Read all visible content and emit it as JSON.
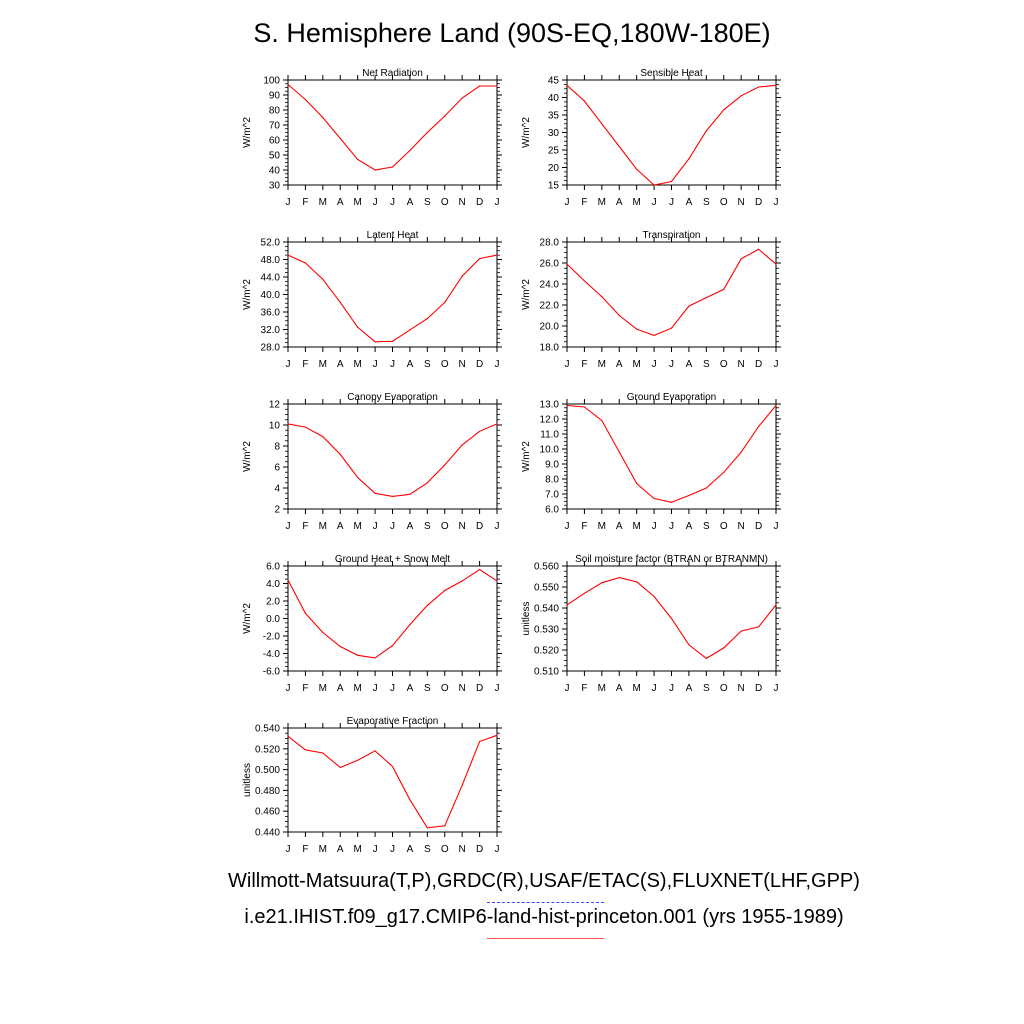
{
  "title": "S. Hemisphere Land (90S-EQ,180W-180E)",
  "footer": {
    "observations": "Willmott-Matsuura(T,P),GRDC(R),USAF/ETAC(S),FLUXNET(LHF,GPP)",
    "case": "i.e21.IHIST.f09_g17.CMIP6-land-hist-princeton.001 (yrs 1955-1989)"
  },
  "colors": {
    "case_line": "#ff0000",
    "obs_line": "#4040ff",
    "axis": "#000000"
  },
  "months": [
    "J",
    "F",
    "M",
    "A",
    "M",
    "J",
    "J",
    "A",
    "S",
    "O",
    "N",
    "D",
    "J"
  ],
  "chart_data": [
    {
      "type": "line",
      "title": "Net Radiation",
      "ylabel": "W/m^2",
      "ylim": [
        30,
        100
      ],
      "yticks": [
        "30",
        "40",
        "50",
        "60",
        "70",
        "80",
        "90",
        "100"
      ],
      "series": [
        {
          "values": [
            97,
            87,
            75,
            61,
            47,
            40,
            42,
            53,
            65,
            76,
            88,
            96,
            96
          ]
        }
      ]
    },
    {
      "type": "line",
      "title": "Sensible Heat",
      "ylabel": "W/m^2",
      "ylim": [
        15,
        45
      ],
      "yticks": [
        "15",
        "20",
        "25",
        "30",
        "35",
        "40",
        "45"
      ],
      "series": [
        {
          "values": [
            43.5,
            39,
            32.5,
            26,
            19.5,
            15,
            16,
            22.5,
            30.5,
            36.5,
            40.5,
            43,
            43.5
          ]
        }
      ]
    },
    {
      "type": "line",
      "title": "Latent Heat",
      "ylabel": "W/m^2",
      "ylim": [
        28,
        52
      ],
      "yticks": [
        "28.0",
        "32.0",
        "36.0",
        "40.0",
        "44.0",
        "48.0",
        "52.0"
      ],
      "series": [
        {
          "values": [
            49,
            47.2,
            43.5,
            38.2,
            32.5,
            29.2,
            29.3,
            31.9,
            34.5,
            38.2,
            44.2,
            48.2,
            49
          ]
        }
      ]
    },
    {
      "type": "line",
      "title": "Transpiration",
      "ylabel": "W/m^2",
      "ylim": [
        18,
        28
      ],
      "yticks": [
        "18.0",
        "20.0",
        "22.0",
        "24.0",
        "26.0",
        "28.0"
      ],
      "series": [
        {
          "values": [
            25.9,
            24.3,
            22.8,
            21.0,
            19.7,
            19.1,
            19.8,
            21.9,
            22.7,
            23.5,
            26.4,
            27.3,
            25.9
          ]
        }
      ]
    },
    {
      "type": "line",
      "title": "Canopy Evaporation",
      "ylabel": "W/m^2",
      "ylim": [
        2,
        12
      ],
      "yticks": [
        "2",
        "4",
        "6",
        "8",
        "10",
        "12"
      ],
      "series": [
        {
          "values": [
            10.1,
            9.8,
            8.9,
            7.2,
            5.0,
            3.5,
            3.2,
            3.4,
            4.5,
            6.2,
            8.1,
            9.4,
            10.1
          ]
        }
      ]
    },
    {
      "type": "line",
      "title": "Ground Evaporation",
      "ylabel": "W/m^2",
      "ylim": [
        6,
        13
      ],
      "yticks": [
        "6.0",
        "7.0",
        "8.0",
        "9.0",
        "10.0",
        "11.0",
        "12.0",
        "13.0"
      ],
      "series": [
        {
          "values": [
            12.9,
            12.8,
            11.9,
            9.8,
            7.7,
            6.7,
            6.45,
            6.9,
            7.4,
            8.45,
            9.8,
            11.5,
            12.9
          ]
        }
      ]
    },
    {
      "type": "line",
      "title": "Ground Heat + Snow Melt",
      "ylabel": "W/m^2",
      "ylim": [
        -6,
        6
      ],
      "yticks": [
        "-6.0",
        "-4.0",
        "-2.0",
        "0.0",
        "2.0",
        "4.0",
        "6.0"
      ],
      "series": [
        {
          "values": [
            4.4,
            0.6,
            -1.6,
            -3.2,
            -4.2,
            -4.5,
            -3.1,
            -0.7,
            1.5,
            3.2,
            4.3,
            5.6,
            4.3
          ]
        }
      ]
    },
    {
      "type": "line",
      "title": "Soil moisture factor (BTRAN or BTRANMN)",
      "ylabel": "unitless",
      "ylim": [
        0.51,
        0.56
      ],
      "yticks": [
        "0.510",
        "0.520",
        "0.530",
        "0.540",
        "0.550",
        "0.560"
      ],
      "series": [
        {
          "values": [
            0.5415,
            0.547,
            0.552,
            0.5545,
            0.5525,
            0.5455,
            0.535,
            0.5225,
            0.516,
            0.521,
            0.529,
            0.531,
            0.5415
          ]
        }
      ]
    },
    {
      "type": "line",
      "title": "Evaporative Fraction",
      "ylabel": "unitless",
      "ylim": [
        0.44,
        0.54
      ],
      "yticks": [
        "0.440",
        "0.460",
        "0.480",
        "0.500",
        "0.520",
        "0.540"
      ],
      "series": [
        {
          "values": [
            0.532,
            0.519,
            0.516,
            0.502,
            0.509,
            0.518,
            0.503,
            0.471,
            0.444,
            0.446,
            0.485,
            0.527,
            0.533
          ]
        }
      ]
    }
  ]
}
